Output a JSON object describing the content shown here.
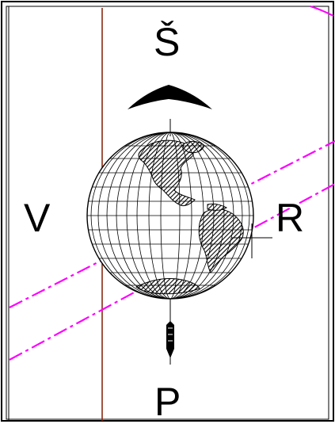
{
  "compass": {
    "north": "Š",
    "south": "P",
    "west": "V",
    "east": "R"
  },
  "colors": {
    "frame": "#000000",
    "meridian_line": "#8b2a10",
    "dashed_lines": "#ff00ff",
    "globe_lines": "#000000",
    "land_hatch": "#000000"
  },
  "icons": {
    "north_pointer": "chevron-up-icon",
    "south_pointer": "arrow-down-icon",
    "globe": "globe-americas-icon",
    "marker": "crosshair-icon"
  }
}
